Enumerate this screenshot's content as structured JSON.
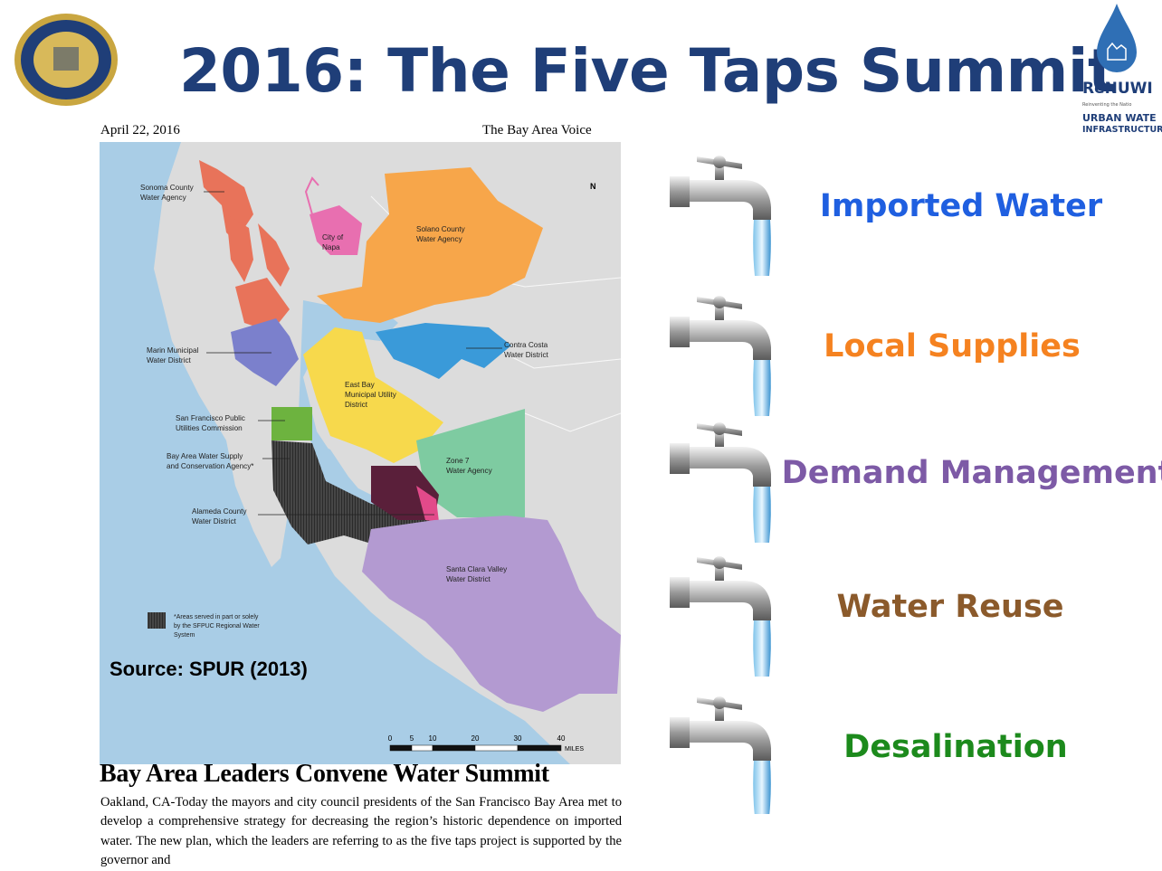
{
  "header": {
    "title": "2016: The Five Taps Summit",
    "logo_right": {
      "name": "ReNUWI",
      "tagline": "Reinventing the Natio",
      "line1": "URBAN WATE",
      "line2": "INFRASTRUCTUR"
    }
  },
  "article": {
    "date": "April 22, 2016",
    "publication": "The Bay Area Voice",
    "headline": "Bay Area Leaders Convene Water Summit",
    "body": "Oakland, CA-Today the mayors and city council presidents of the San Francisco Bay Area met to develop a comprehensive strategy for decreasing the region’s historic dependence on imported water.  The new plan, which the leaders are referring to as the five taps project is supported by the governor and"
  },
  "map": {
    "labels": [
      [
        "Sonoma County",
        "Water Agency"
      ],
      [
        "City of",
        "Napa"
      ],
      [
        "Solano County",
        "Water Agency"
      ],
      [
        "Marin Municipal",
        "Water District"
      ],
      [
        "Contra Costa",
        "Water District"
      ],
      [
        "East Bay",
        "Municipal Utility",
        "District"
      ],
      [
        "San Francisco Public",
        "Utilities Commission"
      ],
      [
        "Bay Area Water Supply",
        "and Conservation Agency*"
      ],
      [
        "Zone 7",
        "Water Agency"
      ],
      [
        "Alameda County",
        "Water District"
      ],
      [
        "Santa Clara Valley",
        "Water District"
      ]
    ],
    "legend": [
      "*Areas served in part or solely",
      "by the SFPUC Regional Water",
      "System"
    ],
    "source": "Source: SPUR (2013)",
    "north": "N",
    "scale": [
      "0",
      "5",
      "10",
      "20",
      "30",
      "40"
    ],
    "scale_unit": "MILES"
  },
  "taps": [
    {
      "label": "Imported Water",
      "color": "#1f5fe0"
    },
    {
      "label": "Local Supplies",
      "color": "#f58220"
    },
    {
      "label": "Demand Management",
      "color": "#7d5aa6"
    },
    {
      "label": "Water Reuse",
      "color": "#8b5a2b"
    },
    {
      "label": "Desalination",
      "color": "#1c8a1c"
    }
  ]
}
